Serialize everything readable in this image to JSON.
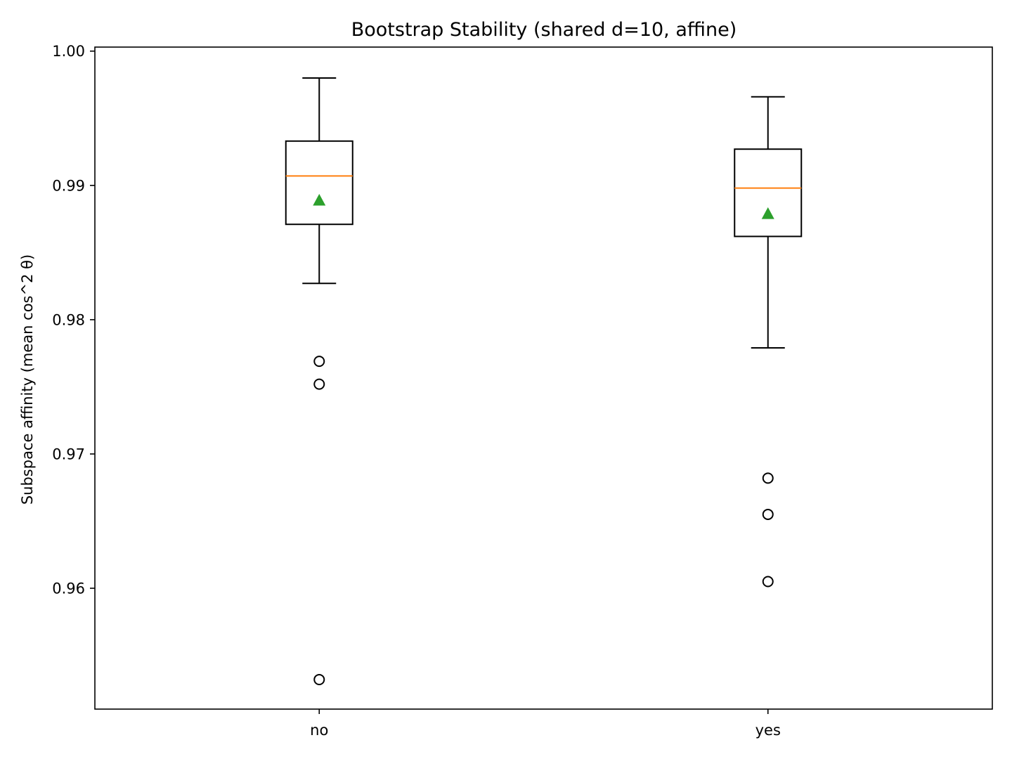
{
  "chart_data": {
    "type": "box",
    "title": "Bootstrap Stability (shared d=10, affine)",
    "xlabel": "",
    "ylabel": "Subspace affinity (mean cos^2 θ)",
    "categories": [
      "no",
      "yes"
    ],
    "ylim": [
      0.951,
      1.0003
    ],
    "yticks": [
      0.96,
      0.97,
      0.98,
      0.99,
      1.0
    ],
    "ytick_labels": [
      "0.96",
      "0.97",
      "0.98",
      "0.99",
      "1.00"
    ],
    "grid": false,
    "legend": "none",
    "boxes": [
      {
        "label": "no",
        "whisker_low": 0.9827,
        "q1": 0.9871,
        "median": 0.9907,
        "q3": 0.9933,
        "whisker_high": 0.998,
        "mean": 0.9889,
        "outliers": [
          0.9769,
          0.9752,
          0.9532
        ]
      },
      {
        "label": "yes",
        "whisker_low": 0.9779,
        "q1": 0.9862,
        "median": 0.9898,
        "q3": 0.9927,
        "whisker_high": 0.9966,
        "mean": 0.9879,
        "outliers": [
          0.9682,
          0.9655,
          0.9605
        ]
      }
    ],
    "colors": {
      "box": "#000000",
      "median": "#ff7f0e",
      "mean": "#2ca02c",
      "outlier": "#000000"
    }
  }
}
